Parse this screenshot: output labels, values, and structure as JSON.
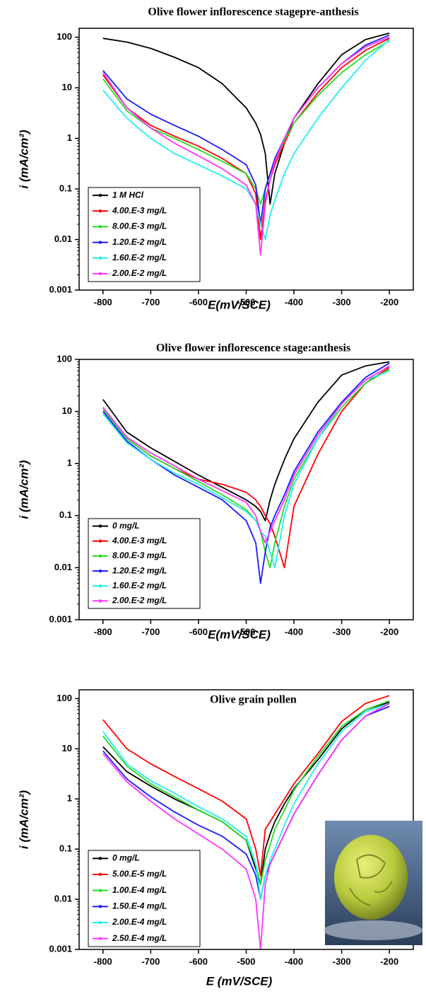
{
  "chart_data": [
    {
      "type": "line",
      "title": "Olive flower inflorescence stagepre-anthesis",
      "x_label": "E(mV/SCE)",
      "y_label": "i (mA/cm²)",
      "log_y": true,
      "x": [
        -800,
        -750,
        -700,
        -650,
        -600,
        -550,
        -500,
        -480,
        -470,
        -460,
        -450,
        -440,
        -420,
        -400,
        -350,
        -300,
        -250,
        -200
      ],
      "xlim": [
        -850,
        -150
      ],
      "xticks": [
        -800,
        -700,
        -600,
        -500,
        -400,
        -300,
        -200
      ],
      "ylim": [
        0.001,
        150
      ],
      "yticks": [
        0.001,
        0.01,
        0.1,
        1,
        10,
        100
      ],
      "legend": "lower left",
      "series": [
        {
          "name": "1 M HCl",
          "color": "#000000",
          "values": [
            95,
            80,
            60,
            40,
            25,
            12,
            4,
            2,
            1.2,
            0.5,
            0.05,
            0.2,
            0.8,
            2.5,
            12,
            45,
            90,
            120
          ]
        },
        {
          "name": "4.00.E-3 mg/L",
          "color": "#ff0000",
          "values": [
            18,
            4,
            1.8,
            1.1,
            0.7,
            0.4,
            0.2,
            0.08,
            0.01,
            0.06,
            0.15,
            0.3,
            0.8,
            2,
            8,
            25,
            55,
            95
          ]
        },
        {
          "name": "8.00.E-3 mg/L",
          "color": "#22dd22",
          "values": [
            15,
            3.5,
            1.6,
            1,
            0.6,
            0.35,
            0.2,
            0.1,
            0.05,
            0.1,
            0.2,
            0.35,
            0.9,
            2,
            7,
            20,
            45,
            85
          ]
        },
        {
          "name": "1.20.E-2 mg/L",
          "color": "#1a1aff",
          "values": [
            22,
            6,
            3,
            1.8,
            1.1,
            0.6,
            0.3,
            0.12,
            0.02,
            0.1,
            0.2,
            0.4,
            1,
            2.5,
            10,
            30,
            70,
            110
          ]
        },
        {
          "name": "1.60.E-2 mg/L",
          "color": "#22eeee",
          "values": [
            9,
            2.5,
            1,
            0.5,
            0.3,
            0.18,
            0.1,
            0.05,
            0.02,
            0.01,
            0.03,
            0.06,
            0.2,
            0.5,
            2.5,
            10,
            35,
            90
          ]
        },
        {
          "name": "2.00.E-2 mg/L",
          "color": "#ff33ff",
          "values": [
            20,
            4,
            1.6,
            0.8,
            0.45,
            0.25,
            0.12,
            0.05,
            0.005,
            0.05,
            0.15,
            0.35,
            1,
            2.5,
            10,
            30,
            65,
            100
          ]
        }
      ]
    },
    {
      "type": "line",
      "title": "Olive flower inflorescence stage:anthesis",
      "x_label": "E(mV/SCE)",
      "y_label": "i (mA/cm²)",
      "log_y": true,
      "x": [
        -800,
        -750,
        -700,
        -650,
        -600,
        -550,
        -500,
        -480,
        -470,
        -460,
        -450,
        -440,
        -420,
        -400,
        -350,
        -300,
        -250,
        -200
      ],
      "xlim": [
        -850,
        -150
      ],
      "xticks": [
        -800,
        -700,
        -600,
        -500,
        -400,
        -300,
        -200
      ],
      "ylim": [
        0.001,
        100
      ],
      "yticks": [
        0.001,
        0.01,
        0.1,
        1,
        10,
        100
      ],
      "legend": "lower left",
      "series": [
        {
          "name": "0 mg/L",
          "color": "#000000",
          "values": [
            17,
            4,
            2,
            1.1,
            0.6,
            0.35,
            0.2,
            0.15,
            0.12,
            0.08,
            0.2,
            0.4,
            1.2,
            3,
            15,
            50,
            75,
            90
          ]
        },
        {
          "name": "4.00.E-3 mg/L",
          "color": "#ff0000",
          "values": [
            12,
            3,
            1.4,
            0.8,
            0.5,
            0.4,
            0.28,
            0.2,
            0.15,
            0.1,
            0.07,
            0.04,
            0.01,
            0.15,
            1.5,
            10,
            35,
            70
          ]
        },
        {
          "name": "8.00.E-3 mg/L",
          "color": "#22dd22",
          "values": [
            11,
            3,
            1.4,
            0.8,
            0.45,
            0.25,
            0.13,
            0.08,
            0.05,
            0.02,
            0.01,
            0.03,
            0.15,
            0.5,
            3,
            12,
            35,
            65
          ]
        },
        {
          "name": "1.20.E-2 mg/L",
          "color": "#1a1aff",
          "values": [
            10,
            2.7,
            1.2,
            0.6,
            0.35,
            0.2,
            0.08,
            0.03,
            0.005,
            0.02,
            0.06,
            0.1,
            0.25,
            0.7,
            4,
            15,
            45,
            85
          ]
        },
        {
          "name": "1.60.E-2 mg/L",
          "color": "#22eeee",
          "values": [
            9,
            2.5,
            1.2,
            0.65,
            0.4,
            0.22,
            0.12,
            0.08,
            0.05,
            0.04,
            0.02,
            0.01,
            0.1,
            0.4,
            3,
            14,
            40,
            60
          ]
        },
        {
          "name": "2.00.E-2 mg/L",
          "color": "#ff33ff",
          "values": [
            12,
            3.2,
            1.6,
            0.9,
            0.5,
            0.3,
            0.18,
            0.1,
            0.05,
            0.03,
            0.05,
            0.08,
            0.2,
            0.6,
            3.5,
            14,
            40,
            75
          ]
        }
      ]
    },
    {
      "type": "line",
      "title": "Olive grain pollen",
      "x_label": "E (mV/SCE)",
      "y_label": "i (mA/cm²)",
      "log_y": true,
      "x": [
        -800,
        -750,
        -700,
        -650,
        -600,
        -550,
        -500,
        -480,
        -470,
        -460,
        -450,
        -440,
        -420,
        -400,
        -350,
        -300,
        -250,
        -200
      ],
      "xlim": [
        -850,
        -150
      ],
      "xticks": [
        -800,
        -700,
        -600,
        -500,
        -400,
        -300,
        -200
      ],
      "ylim": [
        0.001,
        150
      ],
      "yticks": [
        0.001,
        0.01,
        0.1,
        1,
        10,
        100
      ],
      "legend": "lower left",
      "series": [
        {
          "name": "0 mg/L",
          "color": "#000000",
          "values": [
            11,
            3.5,
            1.8,
            1,
            0.6,
            0.35,
            0.15,
            0.04,
            0.02,
            0.1,
            0.2,
            0.35,
            0.8,
            1.6,
            6,
            25,
            60,
            85
          ]
        },
        {
          "name": "5.00.E-5 mg/L",
          "color": "#ff0000",
          "values": [
            38,
            10,
            5,
            2.8,
            1.6,
            0.9,
            0.4,
            0.1,
            0.03,
            0.25,
            0.35,
            0.5,
            1,
            2,
            8,
            35,
            80,
            115
          ]
        },
        {
          "name": "1.00.E-4 mg/L",
          "color": "#22dd22",
          "values": [
            18,
            4.5,
            2,
            1.1,
            0.6,
            0.35,
            0.15,
            0.05,
            0.02,
            0.06,
            0.12,
            0.25,
            0.6,
            1.5,
            7,
            28,
            60,
            90
          ]
        },
        {
          "name": "1.50.E-4 mg/L",
          "color": "#1a1aff",
          "values": [
            9,
            2.5,
            1.1,
            0.55,
            0.3,
            0.18,
            0.08,
            0.03,
            0.01,
            0.03,
            0.05,
            0.08,
            0.2,
            0.5,
            3,
            15,
            45,
            70
          ]
        },
        {
          "name": "2.00.E-4 mg/L",
          "color": "#22eeee",
          "values": [
            22,
            5,
            2.3,
            1.3,
            0.7,
            0.4,
            0.18,
            0.05,
            0.01,
            0.03,
            0.06,
            0.1,
            0.3,
            0.8,
            5,
            22,
            55,
            80
          ]
        },
        {
          "name": "2.50.E-4 mg/L",
          "color": "#ff33ff",
          "values": [
            8,
            2.2,
            0.9,
            0.4,
            0.2,
            0.1,
            0.04,
            0.01,
            0.001,
            0.02,
            0.05,
            0.08,
            0.2,
            0.5,
            3,
            15,
            45,
            80
          ]
        }
      ]
    }
  ]
}
